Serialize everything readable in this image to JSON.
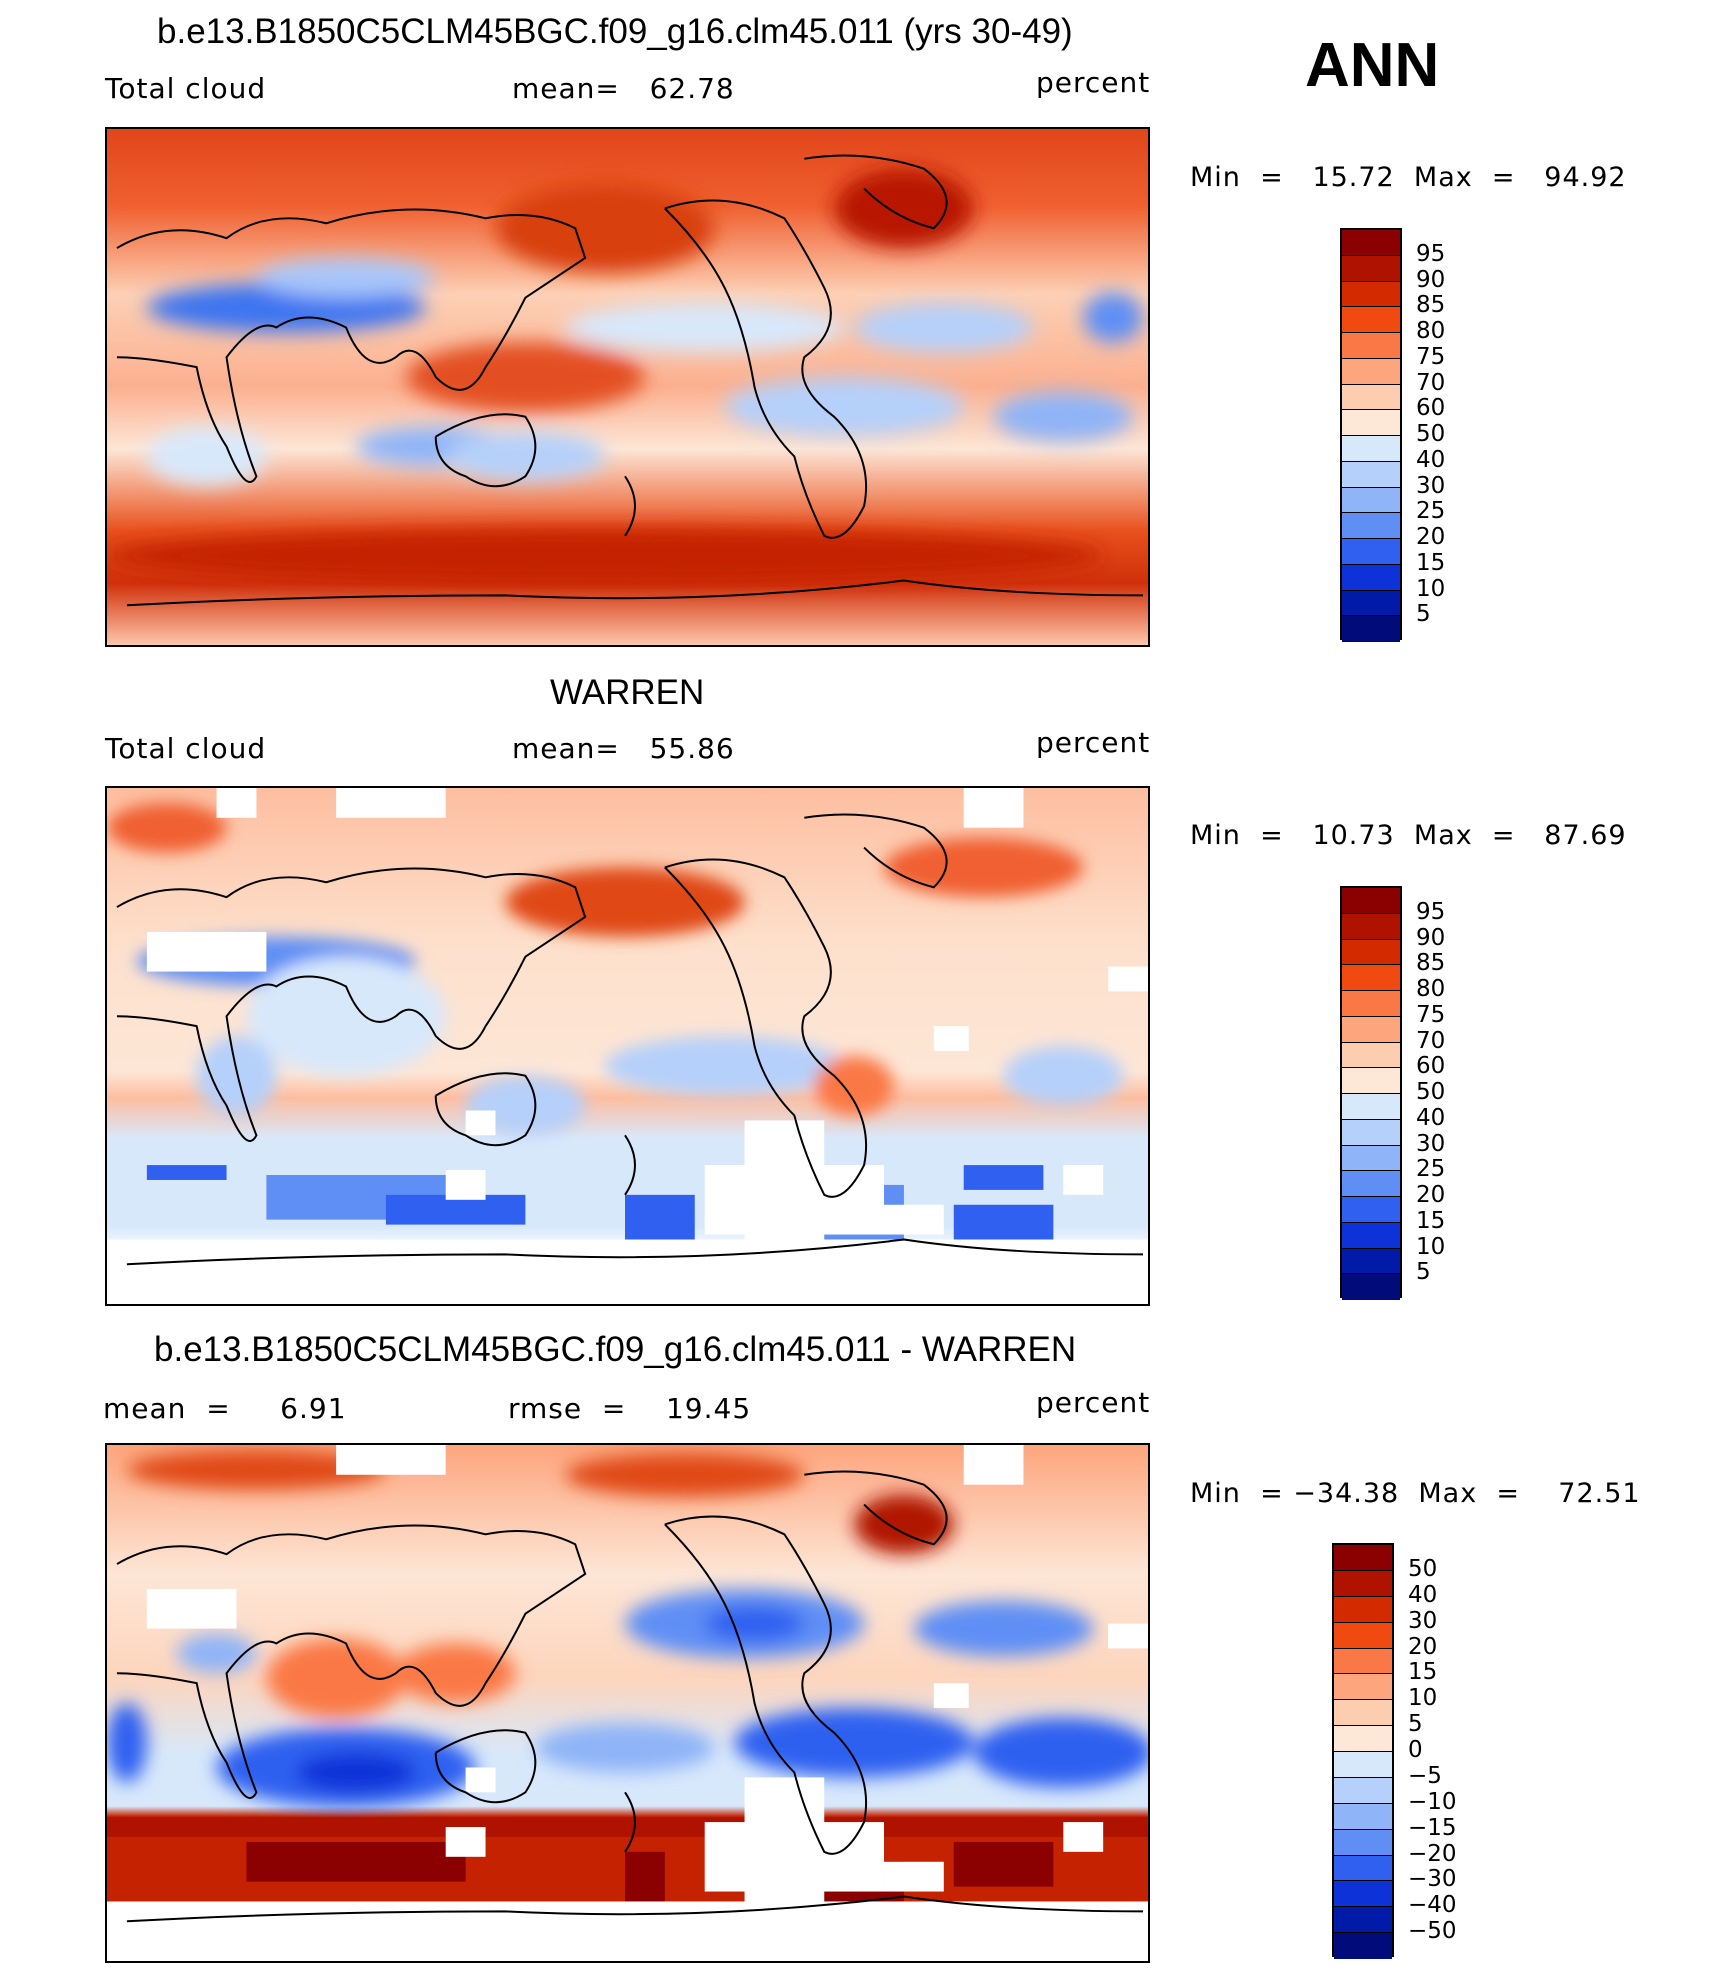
{
  "season": "ANN",
  "panels": [
    {
      "title": "b.e13.B1850C5CLM45BGC.f09_g16.clm45.011 (yrs 30-49)",
      "left_label": "Total cloud",
      "mid_label": "mean=   62.78",
      "right_label": "percent",
      "minmax": "Min  =   15.72  Max  =   94.92",
      "colorbar": {
        "labels": [
          "95",
          "90",
          "85",
          "80",
          "75",
          "70",
          "60",
          "50",
          "40",
          "30",
          "25",
          "20",
          "15",
          "10",
          "5"
        ],
        "colors": [
          "#8b0000",
          "#b01200",
          "#d42a00",
          "#f04a10",
          "#fa7845",
          "#fda57d",
          "#fdcdb0",
          "#fde8d8",
          "#d8e8fb",
          "#b5d0fa",
          "#8fb4f7",
          "#5f8ff5",
          "#2f60f0",
          "#0c32d8",
          "#021aa8",
          "#010c7a"
        ]
      }
    },
    {
      "title": "WARREN",
      "left_label": "Total cloud",
      "mid_label": "mean=   55.86",
      "right_label": "percent",
      "minmax": "Min  =   10.73  Max  =   87.69",
      "colorbar": {
        "labels": [
          "95",
          "90",
          "85",
          "80",
          "75",
          "70",
          "60",
          "50",
          "40",
          "30",
          "25",
          "20",
          "15",
          "10",
          "5"
        ],
        "colors": [
          "#8b0000",
          "#b01200",
          "#d42a00",
          "#f04a10",
          "#fa7845",
          "#fda57d",
          "#fdcdb0",
          "#fde8d8",
          "#d8e8fb",
          "#b5d0fa",
          "#8fb4f7",
          "#5f8ff5",
          "#2f60f0",
          "#0c32d8",
          "#021aa8",
          "#010c7a"
        ]
      }
    },
    {
      "title": "b.e13.B1850C5CLM45BGC.f09_g16.clm45.011 - WARREN",
      "left_label": "mean  =     6.91",
      "mid_label": "rmse  =    19.45",
      "right_label": "percent",
      "minmax": "Min  = −34.38  Max  =    72.51",
      "colorbar": {
        "labels": [
          "50",
          "40",
          "30",
          "20",
          "15",
          "10",
          "5",
          "0",
          "−5",
          "−10",
          "−15",
          "−20",
          "−30",
          "−40",
          "−50"
        ],
        "colors": [
          "#8b0000",
          "#b01200",
          "#d42a00",
          "#f04a10",
          "#fa7845",
          "#fda57d",
          "#fdcdb0",
          "#fde8d8",
          "#d8e8fb",
          "#b5d0fa",
          "#8fb4f7",
          "#5f8ff5",
          "#2f60f0",
          "#0c32d8",
          "#021aa8",
          "#010c7a"
        ]
      }
    }
  ]
}
